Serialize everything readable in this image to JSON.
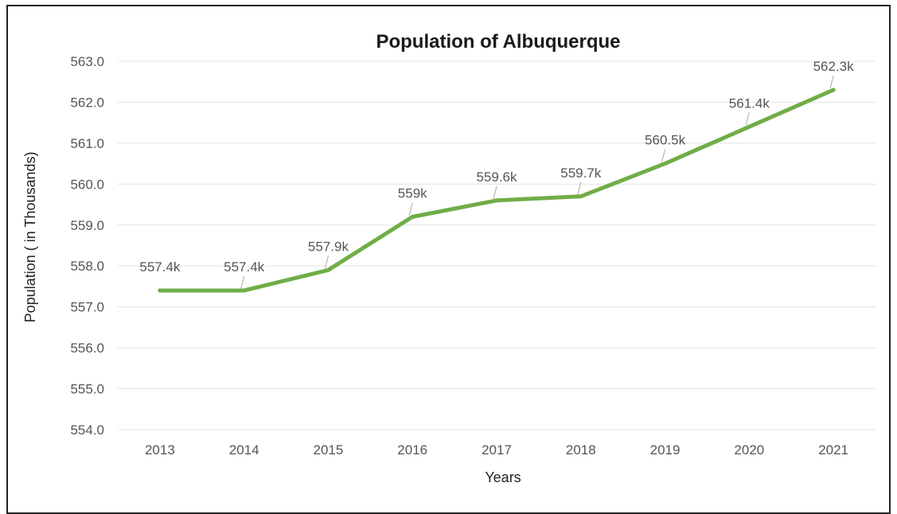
{
  "chart_data": {
    "type": "line",
    "title": "Population of Albuquerque",
    "xlabel": "Years",
    "ylabel": "Population ( in Thousands)",
    "categories": [
      "2013",
      "2014",
      "2015",
      "2016",
      "2017",
      "2018",
      "2019",
      "2020",
      "2021"
    ],
    "series": [
      {
        "values": [
          557.4,
          557.4,
          557.9,
          559.2,
          559.6,
          559.7,
          560.5,
          561.4,
          562.3
        ],
        "data_labels": [
          "557.4k",
          "557.4k",
          "557.9k",
          "559k",
          "559.6k",
          "559.7k",
          "560.5k",
          "561.4k",
          "562.3k"
        ]
      }
    ],
    "ylim": [
      554.0,
      563.0
    ],
    "yticks": [
      "554.0",
      "555.0",
      "556.0",
      "557.0",
      "558.0",
      "559.0",
      "560.0",
      "561.0",
      "562.0",
      "563.0"
    ],
    "grid": true,
    "legend": "none",
    "line_color": "#70AD47"
  }
}
